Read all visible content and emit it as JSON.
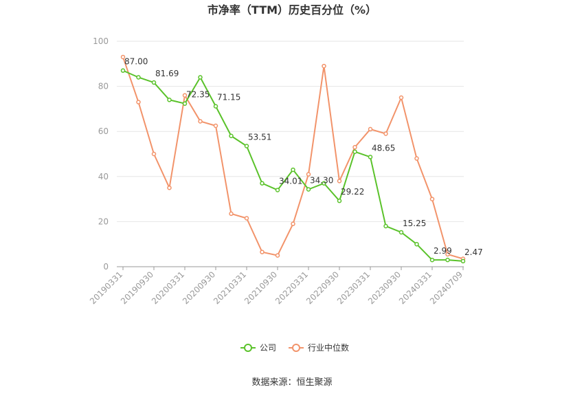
{
  "chart_data": {
    "type": "line",
    "title": "市净率（TTM）历史百分位（%）",
    "source": "数据来源：恒生聚源",
    "ylim": [
      0,
      100
    ],
    "yticks": [
      0,
      20,
      40,
      60,
      80,
      100
    ],
    "grid": true,
    "legend_position": "bottom",
    "x_tick_labels": [
      "20190331",
      "20190930",
      "20200331",
      "20200930",
      "20210331",
      "20210930",
      "20220331",
      "20220930",
      "20230331",
      "20230930",
      "20240331",
      "20240709"
    ],
    "x": [
      "20190331",
      "20190630",
      "20190930",
      "20191231",
      "20200331",
      "20200630",
      "20200930",
      "20201231",
      "20210331",
      "20210630",
      "20210930",
      "20211231",
      "20220331",
      "20220630",
      "20220930",
      "20221231",
      "20230331",
      "20230630",
      "20230930",
      "20231231",
      "20240331",
      "20240630",
      "20240709"
    ],
    "series": [
      {
        "name": "公司",
        "color": "#5ac22a",
        "values": [
          87.0,
          84.0,
          81.69,
          74.0,
          72.35,
          84.0,
          71.15,
          58.0,
          53.51,
          37.0,
          34.01,
          43.0,
          34.3,
          37.0,
          29.22,
          51.0,
          48.65,
          18.0,
          15.25,
          10.0,
          2.99,
          3.0,
          2.47
        ],
        "labels": {
          "0": "87.00",
          "2": "81.69",
          "4": "72.35",
          "6": "71.15",
          "8": "53.51",
          "10": "34.01",
          "12": "34.30",
          "14": "29.22",
          "16": "48.65",
          "18": "15.25",
          "20": "2.99",
          "22": "2.47"
        }
      },
      {
        "name": "行业中位数",
        "color": "#f2936a",
        "values": [
          93.0,
          73.0,
          50.0,
          35.0,
          76.0,
          64.5,
          62.5,
          23.5,
          21.5,
          6.5,
          5.0,
          19.0,
          41.0,
          89.0,
          38.0,
          53.0,
          61.0,
          59.0,
          75.0,
          48.0,
          30.0,
          5.5,
          3.5
        ]
      }
    ]
  }
}
